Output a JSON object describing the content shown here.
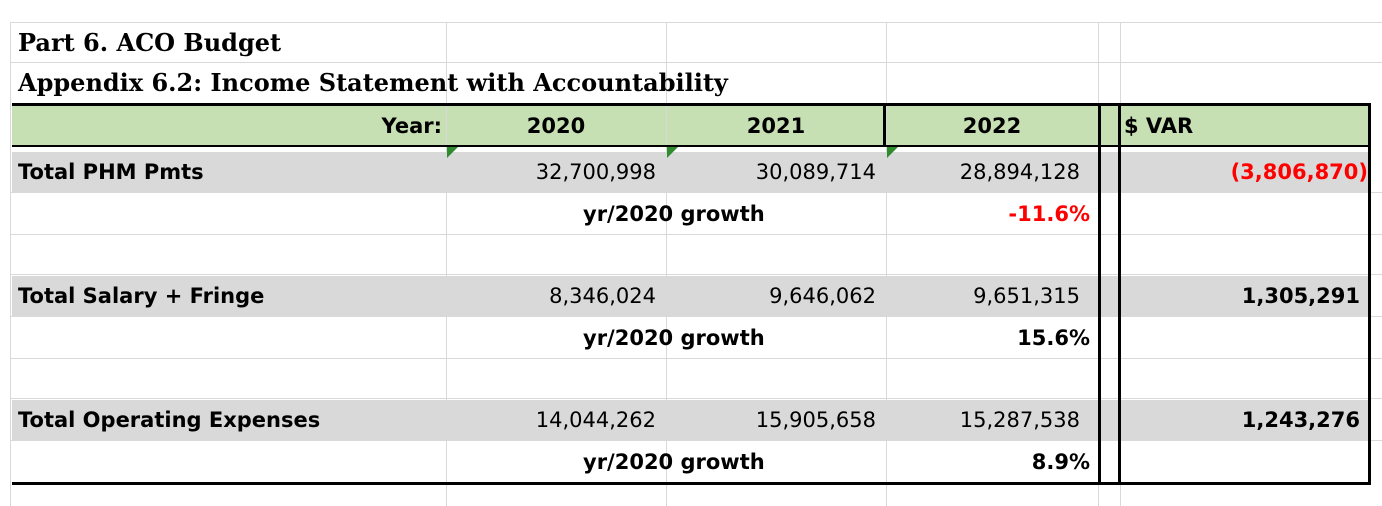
{
  "header": {
    "part_title": "Part 6. ACO Budget",
    "appendix_title": "Appendix 6.2: Income Statement with Accountability",
    "year_label": "Year:",
    "years": [
      "2020",
      "2021",
      "2022"
    ],
    "var_label": "$ VAR"
  },
  "rows": [
    {
      "label": "Total PHM Pmts",
      "values": [
        "32,700,998",
        "30,089,714",
        "28,894,128"
      ],
      "var": "(3,806,870)",
      "growth_label": "yr/2020 growth",
      "growth": "-11.6%"
    },
    {
      "label": "Total Salary + Fringe",
      "values": [
        "8,346,024",
        "9,646,062",
        "9,651,315"
      ],
      "var": "1,305,291",
      "growth_label": "yr/2020 growth",
      "growth": "15.6%"
    },
    {
      "label": "Total Operating Expenses",
      "values": [
        "14,044,262",
        "15,905,658",
        "15,287,538"
      ],
      "var": "1,243,276",
      "growth_label": "yr/2020 growth",
      "growth": "8.9%"
    }
  ],
  "colors": {
    "header_fill": "#c6e0b4",
    "row_fill": "#d9d9d9",
    "negative": "#ff0000",
    "comment_flag": "#2e8b2e"
  }
}
